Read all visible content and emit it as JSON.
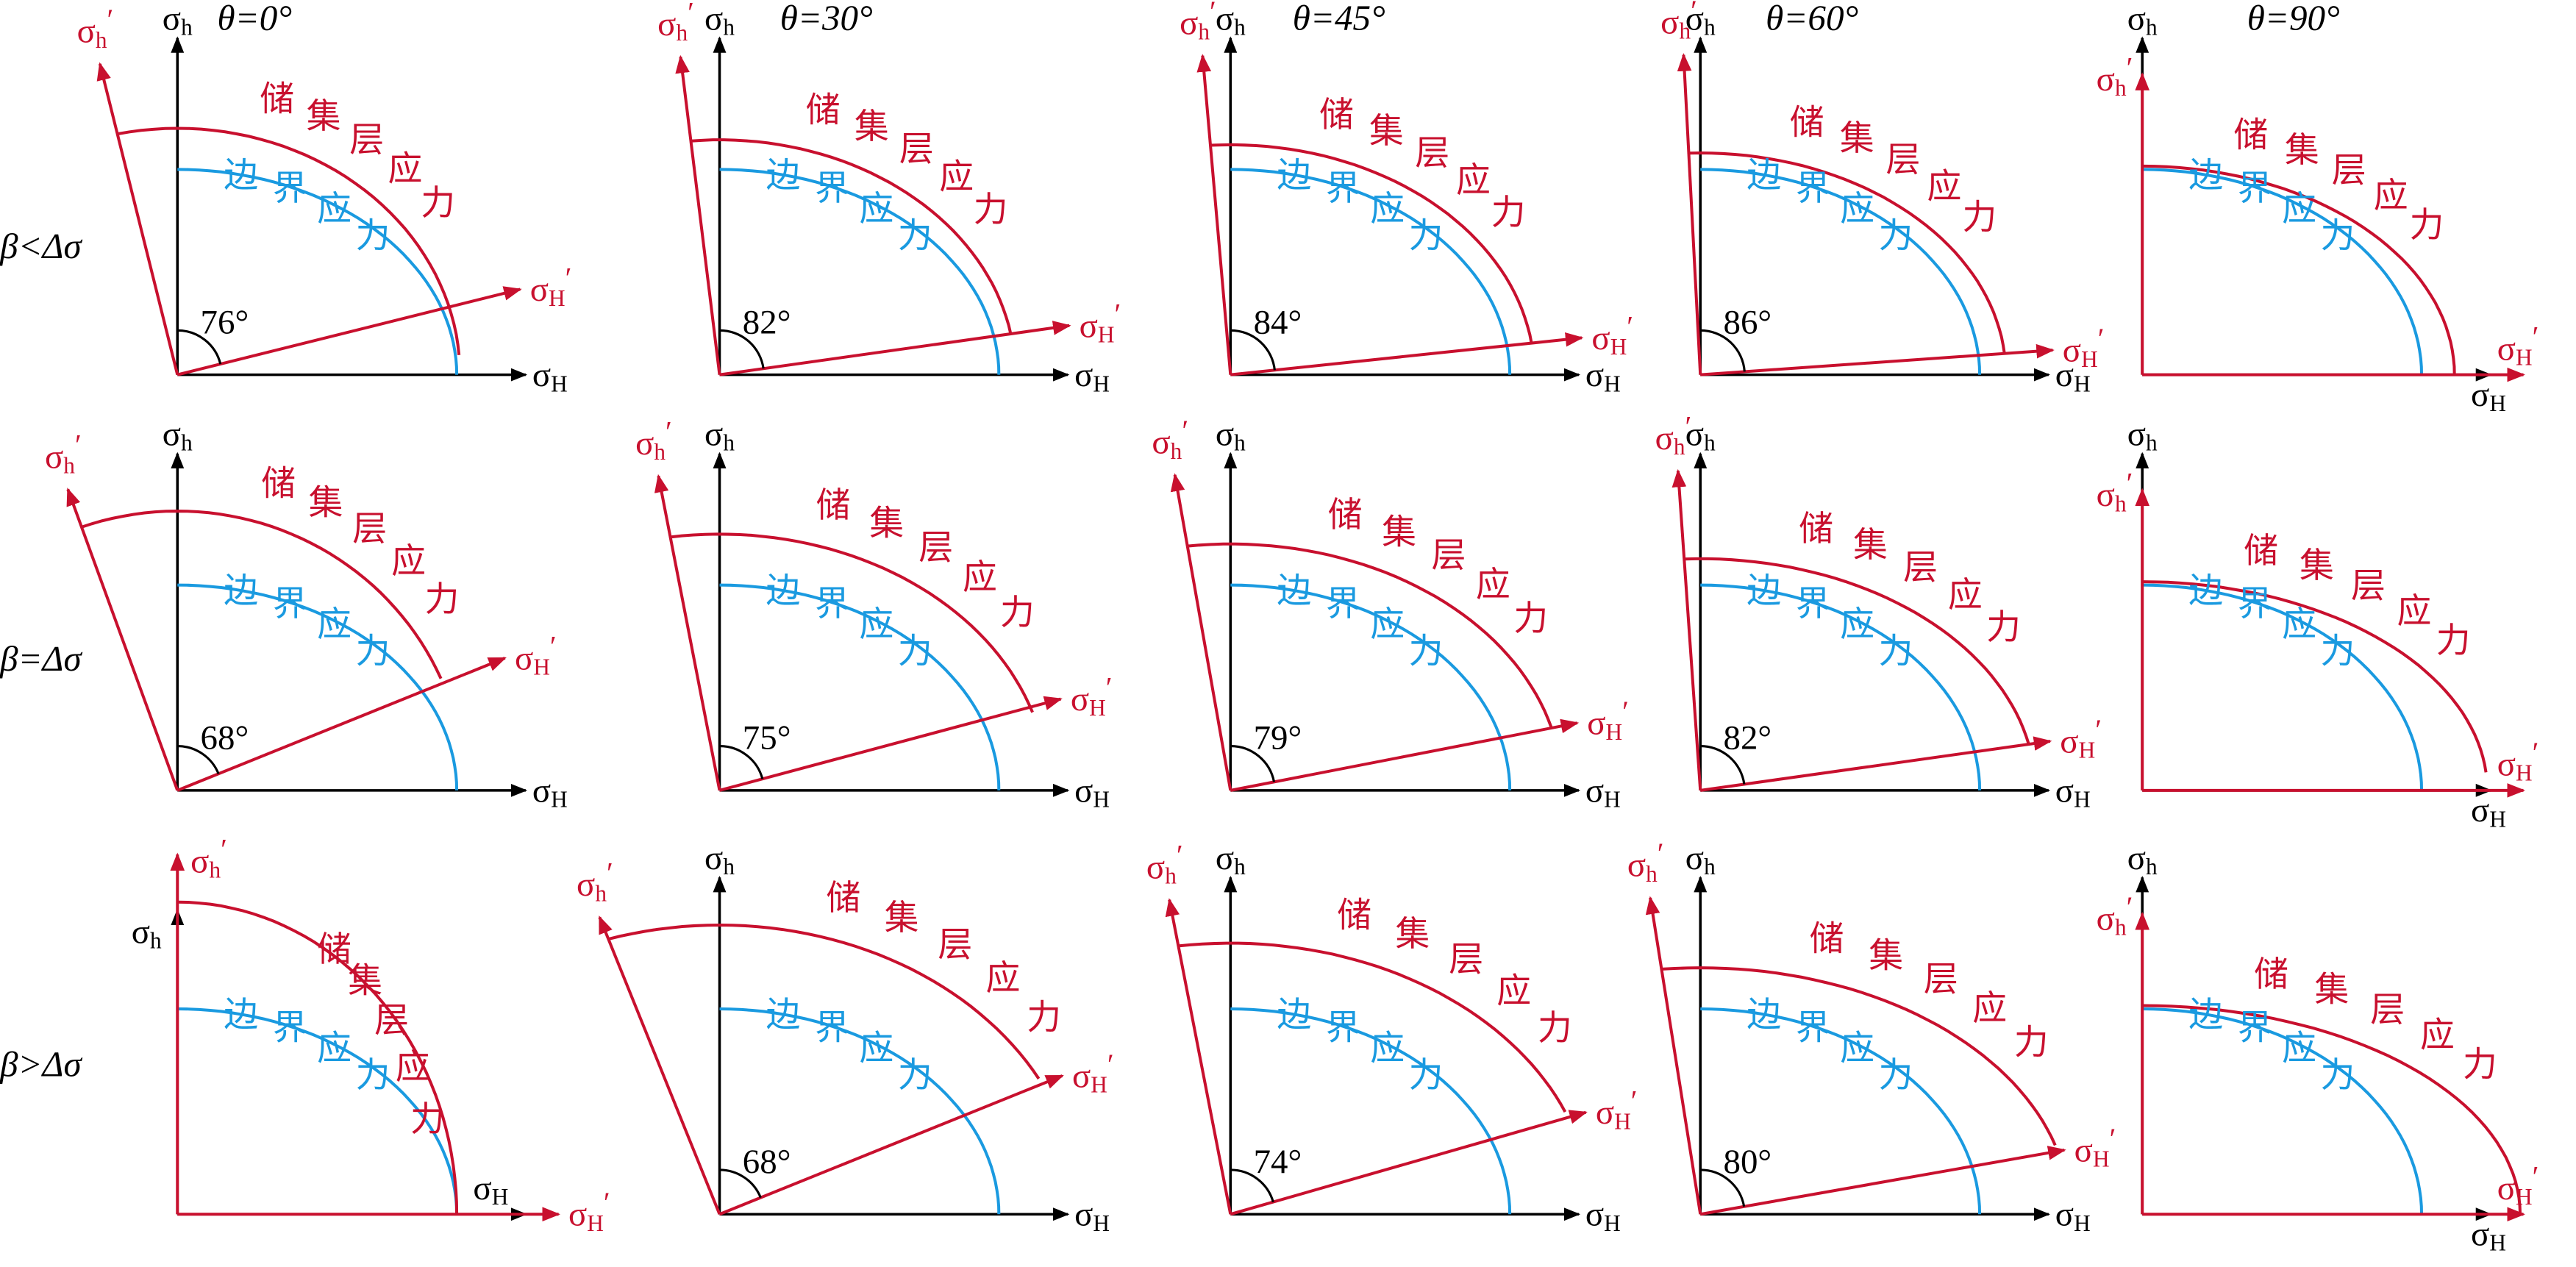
{
  "columns": [
    "θ=0°",
    "θ=30°",
    "θ=45°",
    "θ=60°",
    "θ=90°"
  ],
  "rows": [
    "β<Δσ",
    "β=Δσ",
    "β>Δσ"
  ],
  "symbols": {
    "sigma": "σ",
    "h": "h",
    "H": "H",
    "prime": "′"
  },
  "reservoir_stress": "储集层应力",
  "boundary_stress": "边界应力",
  "angles": [
    [
      "76°",
      "82°",
      "84°",
      "86°",
      null
    ],
    [
      "68°",
      "75°",
      "79°",
      "82°",
      null
    ],
    [
      null,
      "68°",
      "74°",
      "80°",
      null
    ]
  ]
}
